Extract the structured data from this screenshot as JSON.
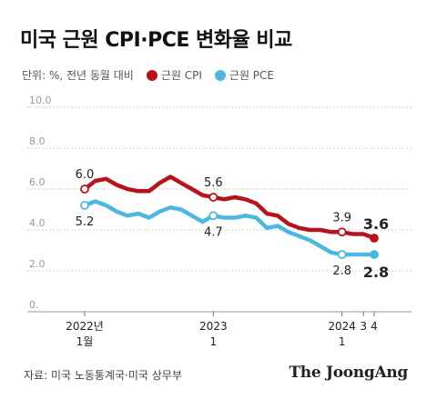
{
  "title": "미국 근원 CPI·PCE 변화율 비교",
  "subtitle": "단위: %, 전년 동월 대비",
  "legend": [
    {
      "label": "근원 CPI",
      "color": "#b5141d"
    },
    {
      "label": "근원 PCE",
      "color": "#4cb8e0"
    }
  ],
  "source": "자료: 미국 노동통계국·미국 상무부",
  "brand": "The JoongAng",
  "chart_data": {
    "type": "line",
    "title": "미국 근원 CPI·PCE 변화율 비교",
    "ylim": [
      0,
      10
    ],
    "yticks": [
      "0.",
      "2.0",
      "4.0",
      "6.0",
      "8.0",
      "10.0"
    ],
    "ytick_values": [
      0,
      2,
      4,
      6,
      8,
      10
    ],
    "grid": true,
    "x": [
      "2022-01",
      "2022-02",
      "2022-03",
      "2022-04",
      "2022-05",
      "2022-06",
      "2022-07",
      "2022-08",
      "2022-09",
      "2022-10",
      "2022-11",
      "2022-12",
      "2023-01",
      "2023-02",
      "2023-03",
      "2023-04",
      "2023-05",
      "2023-06",
      "2023-07",
      "2023-08",
      "2023-09",
      "2023-10",
      "2023-11",
      "2023-12",
      "2024-01",
      "2024-02",
      "2024-03",
      "2024-04"
    ],
    "xticks": [
      {
        "line1": "2022년",
        "line2": "1월",
        "index": 0
      },
      {
        "line1": "2023",
        "line2": "1",
        "index": 12
      },
      {
        "line1": "2024",
        "line2": "1",
        "index": 24
      },
      {
        "line1": "3",
        "line2": "",
        "index": 26
      },
      {
        "line1": "4",
        "line2": "",
        "index": 27
      }
    ],
    "series": [
      {
        "name": "근원 CPI",
        "color": "#b5141d",
        "values": [
          6.0,
          6.4,
          6.5,
          6.2,
          6.0,
          5.9,
          5.9,
          6.3,
          6.6,
          6.3,
          6.0,
          5.7,
          5.6,
          5.5,
          5.6,
          5.5,
          5.3,
          4.8,
          4.7,
          4.3,
          4.1,
          4.0,
          4.0,
          3.9,
          3.9,
          3.8,
          3.8,
          3.6
        ]
      },
      {
        "name": "근원 PCE",
        "color": "#4cb8e0",
        "values": [
          5.2,
          5.4,
          5.2,
          4.9,
          4.7,
          4.8,
          4.6,
          4.9,
          5.1,
          5.0,
          4.7,
          4.4,
          4.7,
          4.6,
          4.6,
          4.7,
          4.6,
          4.1,
          4.2,
          3.9,
          3.7,
          3.5,
          3.2,
          2.9,
          2.8,
          2.8,
          2.8,
          2.8
        ]
      }
    ],
    "annotations": [
      {
        "series": 0,
        "index": 0,
        "text": "6.0",
        "pos": "above",
        "bold": false
      },
      {
        "series": 1,
        "index": 0,
        "text": "5.2",
        "pos": "below",
        "bold": false
      },
      {
        "series": 0,
        "index": 12,
        "text": "5.6",
        "pos": "above",
        "bold": false
      },
      {
        "series": 1,
        "index": 12,
        "text": "4.7",
        "pos": "below",
        "bold": false
      },
      {
        "series": 0,
        "index": 24,
        "text": "3.9",
        "pos": "above",
        "bold": false
      },
      {
        "series": 1,
        "index": 24,
        "text": "2.8",
        "pos": "below",
        "bold": false
      },
      {
        "series": 0,
        "index": 27,
        "text": "3.6",
        "pos": "above-right",
        "bold": true
      },
      {
        "series": 1,
        "index": 27,
        "text": "2.8",
        "pos": "below-right",
        "bold": true
      }
    ]
  }
}
